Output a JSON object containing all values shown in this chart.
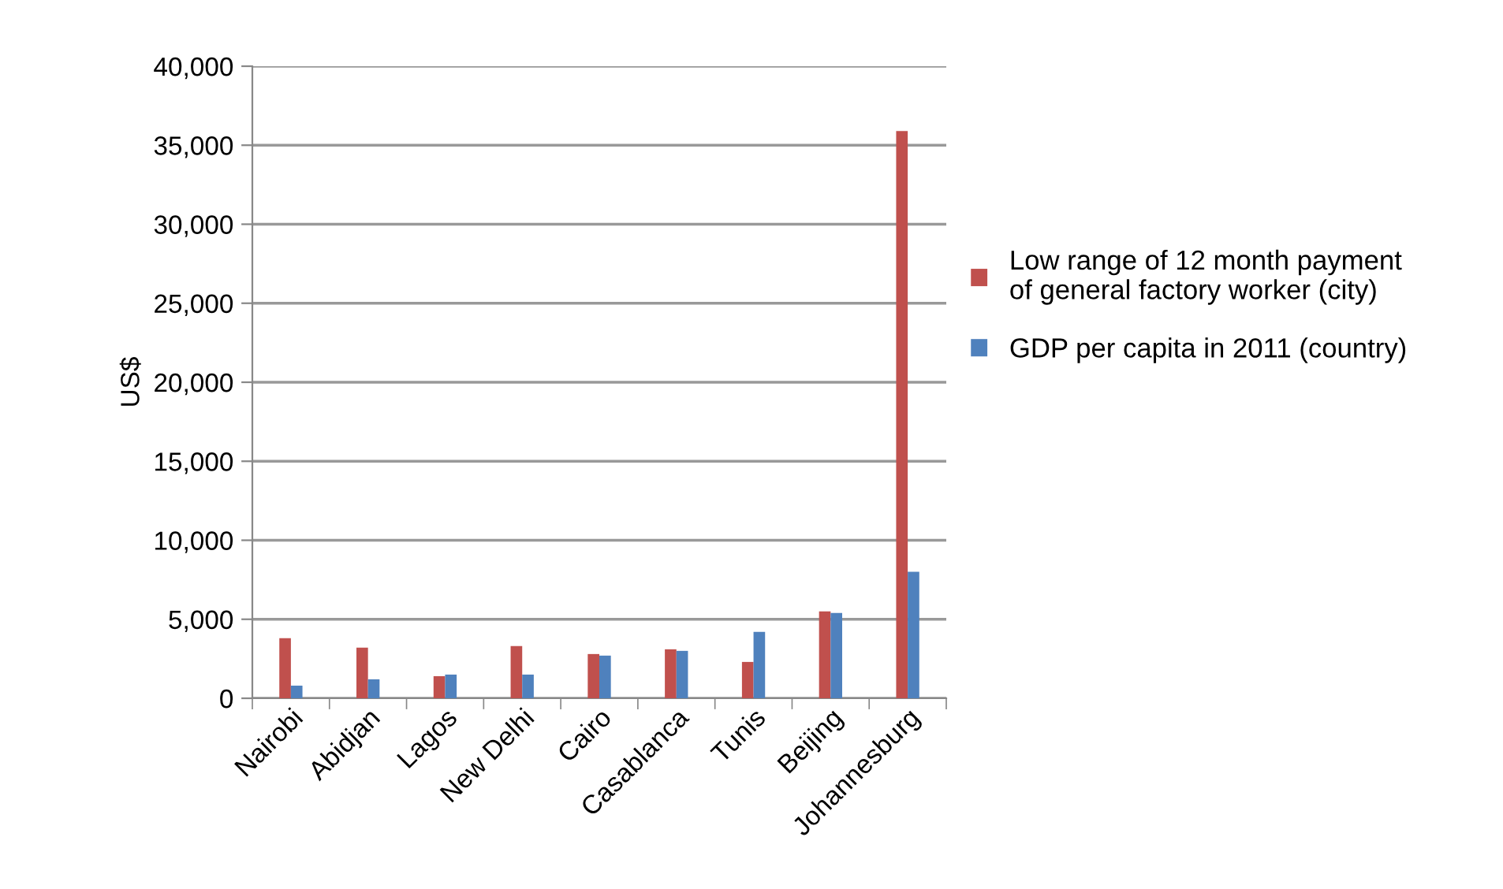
{
  "chart_data": {
    "type": "bar",
    "ylabel": "US$",
    "categories": [
      "Nairobi",
      "Abidjan",
      "Lagos",
      "New Delhi",
      "Cairo",
      "Casablanca",
      "Tunis",
      "Beijing",
      "Johannesburg"
    ],
    "series": [
      {
        "name": "Low range of 12 month payment of general factory worker (city)",
        "color": "#c0504d",
        "values": [
          3800,
          3200,
          1400,
          3300,
          2800,
          3100,
          2300,
          5500,
          35900
        ]
      },
      {
        "name": "GDP per capita in 2011 (country)",
        "color": "#4f81bd",
        "values": [
          800,
          1200,
          1500,
          1500,
          2700,
          3000,
          4200,
          5400,
          8000
        ]
      }
    ],
    "ylim": [
      0,
      40000
    ],
    "yticks": [
      {
        "value": 0,
        "label": "0"
      },
      {
        "value": 5000,
        "label": "5,000"
      },
      {
        "value": 10000,
        "label": "10,000"
      },
      {
        "value": 15000,
        "label": "15,000"
      },
      {
        "value": 20000,
        "label": "20,000"
      },
      {
        "value": 25000,
        "label": "25,000"
      },
      {
        "value": 30000,
        "label": "30,000"
      },
      {
        "value": 35000,
        "label": "35,000"
      },
      {
        "value": 40000,
        "label": "40,000"
      }
    ],
    "grid": "y",
    "legend": "right"
  }
}
